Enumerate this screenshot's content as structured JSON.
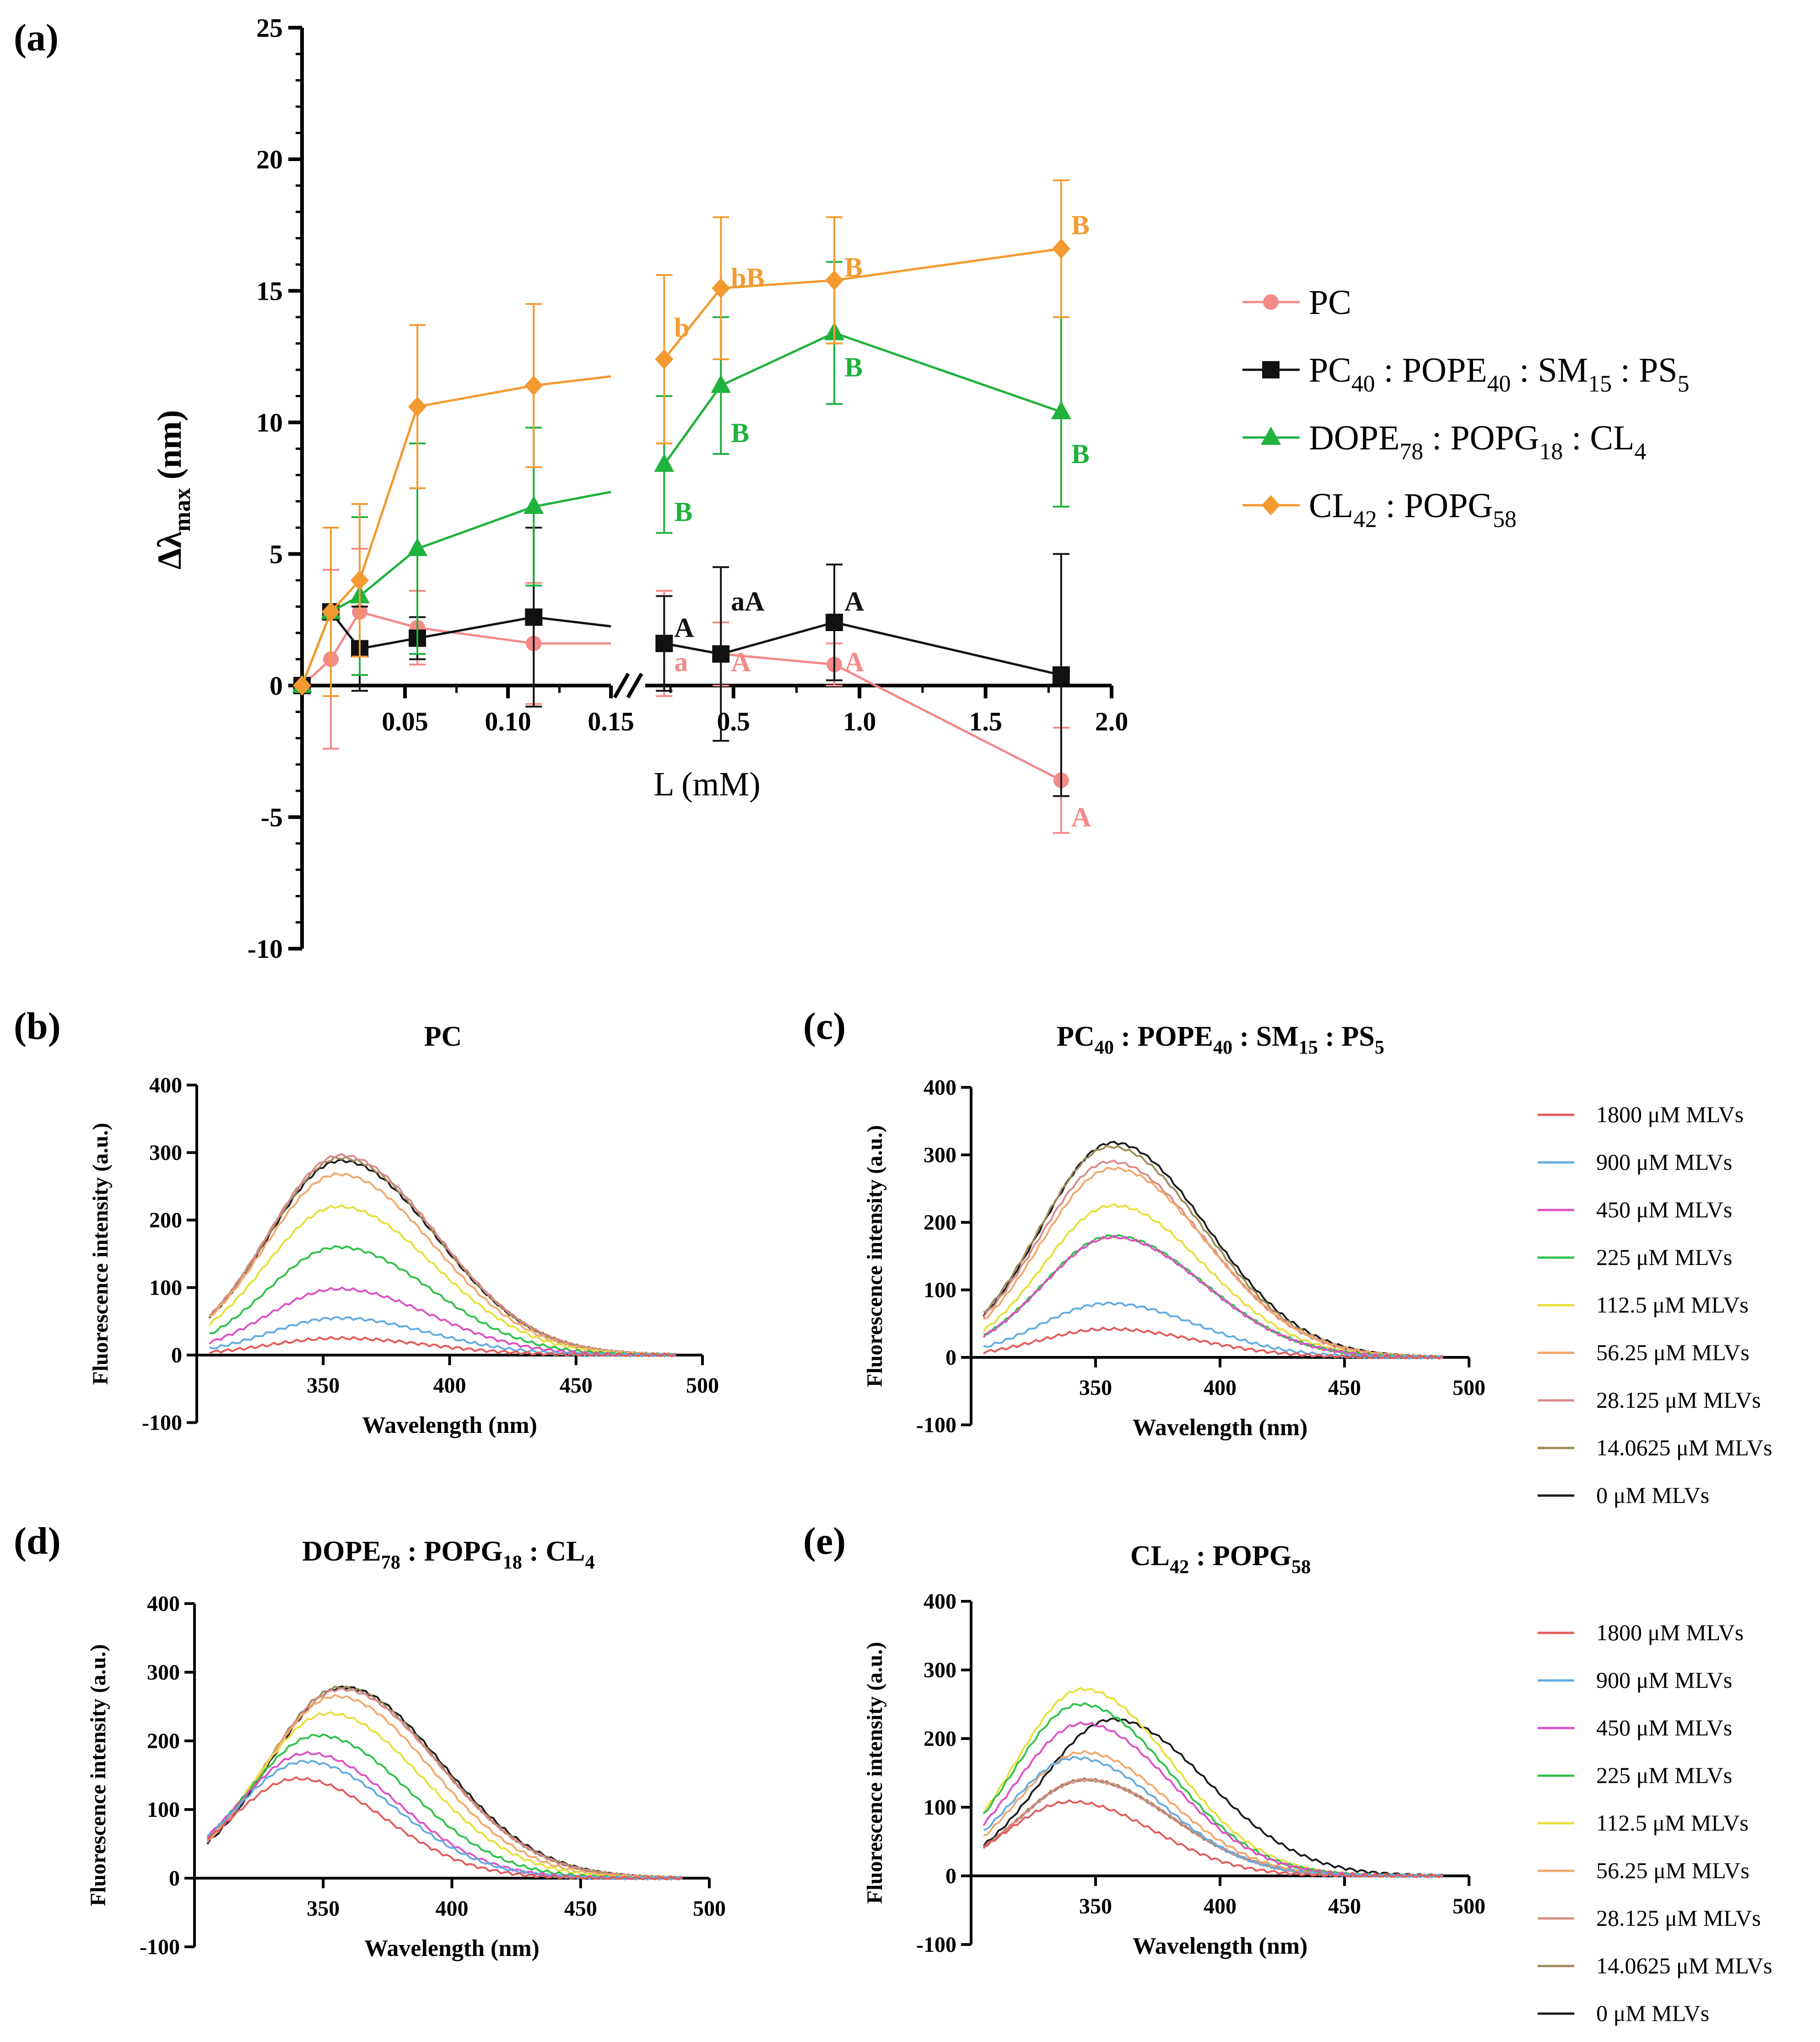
{
  "chart_data": [
    {
      "panel": "(a)",
      "type": "line",
      "title": "",
      "xlabel": "L (mM)",
      "ylabel": "Δλmax (nm)",
      "ylabel_main": "Δλ",
      "ylabel_sub": "max",
      "ylabel_unit": " (nm)",
      "ylim": [
        -10,
        25
      ],
      "yticks": [
        -10,
        -5,
        0,
        5,
        10,
        15,
        20,
        25
      ],
      "x_segment1_range": [
        0,
        0.15
      ],
      "x_segment1_ticks": [
        "0.05",
        "0.10",
        "0.15"
      ],
      "x_segment1_tick_values": [
        0.05,
        0.1,
        0.15
      ],
      "x_segment2_range": [
        0.15,
        2.0
      ],
      "x_segment2_ticks": [
        "0.5",
        "1.0",
        "1.5",
        "2.0"
      ],
      "x_segment2_tick_values": [
        0.5,
        1.0,
        1.5,
        2.0
      ],
      "axis_break": true,
      "legend_position": "right",
      "series": [
        {
          "name": "PC",
          "legend": [
            {
              "t": "PC"
            }
          ],
          "color": "#f48a8a",
          "marker": "circle",
          "x": [
            0,
            0.014,
            0.028,
            0.056,
            0.1125,
            0.225,
            0.45,
            0.9,
            1.8
          ],
          "y": [
            0,
            1.0,
            2.8,
            2.2,
            1.6,
            1.6,
            1.2,
            0.8,
            -3.6
          ],
          "err": [
            0,
            3.4,
            2.4,
            1.4,
            2.3,
            2.0,
            1.2,
            0.8,
            2.0
          ],
          "annotations": [
            {
              "x": 0.225,
              "y": 0.9,
              "text": "a"
            },
            {
              "x": 0.45,
              "y": 0.9,
              "text": "A"
            },
            {
              "x": 0.9,
              "y": 0.9,
              "text": "A"
            },
            {
              "x": 1.8,
              "y": -5.0,
              "text": "A"
            }
          ]
        },
        {
          "name": "PC40 : POPE40 : SM15 : PS5",
          "legend": [
            {
              "t": "PC"
            },
            {
              "s": "40"
            },
            {
              "t": " : POPE"
            },
            {
              "s": "40"
            },
            {
              "t": " : SM"
            },
            {
              "s": "15"
            },
            {
              "t": " : PS"
            },
            {
              "s": "5"
            }
          ],
          "color": "#111111",
          "marker": "square",
          "x": [
            0,
            0.014,
            0.028,
            0.056,
            0.1125,
            0.225,
            0.45,
            0.9,
            1.8
          ],
          "y": [
            0,
            2.8,
            1.4,
            1.8,
            2.6,
            1.6,
            1.2,
            2.4,
            0.4
          ],
          "err": [
            0,
            3.2,
            1.6,
            0.8,
            3.4,
            1.8,
            3.3,
            2.2,
            4.6
          ],
          "annotations": [
            {
              "x": 0.225,
              "y": 2.2,
              "text": "A"
            },
            {
              "x": 0.45,
              "y": 3.2,
              "text": "aA"
            },
            {
              "x": 0.9,
              "y": 3.2,
              "text": "A"
            }
          ]
        },
        {
          "name": "DOPE78 : POPG18 : CL4",
          "legend": [
            {
              "t": "DOPE"
            },
            {
              "s": "78"
            },
            {
              "t": " : POPG"
            },
            {
              "s": "18"
            },
            {
              "t": " : CL"
            },
            {
              "s": "4"
            }
          ],
          "color": "#1fb23c",
          "marker": "triangle",
          "x": [
            0,
            0.014,
            0.028,
            0.056,
            0.1125,
            0.225,
            0.45,
            0.9,
            1.8
          ],
          "y": [
            0,
            2.8,
            3.4,
            5.2,
            6.8,
            8.4,
            11.4,
            13.4,
            10.4
          ],
          "err": [
            0,
            3.2,
            3.0,
            4.0,
            3.0,
            2.6,
            2.6,
            2.7,
            3.6
          ],
          "annotations": [
            {
              "x": 0.225,
              "y": 6.6,
              "text": "B"
            },
            {
              "x": 0.45,
              "y": 9.6,
              "text": "B"
            },
            {
              "x": 0.9,
              "y": 12.1,
              "text": "B"
            },
            {
              "x": 1.8,
              "y": 8.8,
              "text": "B"
            }
          ]
        },
        {
          "name": "CL42 : POPG58",
          "legend": [
            {
              "t": "CL"
            },
            {
              "s": "42"
            },
            {
              "t": " : POPG"
            },
            {
              "s": "58"
            }
          ],
          "color": "#f39a30",
          "marker": "diamond",
          "x": [
            0,
            0.014,
            0.028,
            0.056,
            0.1125,
            0.225,
            0.45,
            0.9,
            1.8
          ],
          "y": [
            0,
            2.8,
            4.0,
            10.6,
            11.4,
            12.4,
            15.1,
            15.4,
            16.6
          ],
          "err": [
            0,
            3.2,
            2.9,
            3.1,
            3.1,
            3.2,
            2.7,
            2.4,
            2.6
          ],
          "annotations": [
            {
              "x": 0.225,
              "y": 13.6,
              "text": "b"
            },
            {
              "x": 0.45,
              "y": 15.5,
              "text": "bB"
            },
            {
              "x": 0.9,
              "y": 15.9,
              "text": "B"
            },
            {
              "x": 1.8,
              "y": 17.5,
              "text": "B"
            }
          ]
        }
      ]
    },
    {
      "panel": "(b)",
      "type": "line",
      "title": [
        {
          "t": "PC"
        }
      ],
      "xlabel": "Wavelength (nm)",
      "ylabel": "Fluorescence intensity (a.u.)",
      "xlim": [
        300,
        500
      ],
      "ylim": [
        -100,
        400
      ],
      "xticks": [
        350,
        400,
        450,
        500
      ],
      "yticks": [
        -100,
        0,
        100,
        200,
        300,
        400
      ],
      "series_ref": "spectra_legend",
      "peak_nm": [
        356,
        356,
        356,
        356,
        356,
        356,
        357,
        357,
        357
      ],
      "peak_intensity": [
        25,
        55,
        98,
        160,
        220,
        268,
        296,
        292,
        288
      ],
      "width_nm": [
        34,
        34,
        35,
        35,
        36,
        36,
        36,
        36,
        36
      ]
    },
    {
      "panel": "(c)",
      "type": "line",
      "title": [
        {
          "t": "PC"
        },
        {
          "s": "40"
        },
        {
          "t": " : POPE"
        },
        {
          "s": "40"
        },
        {
          "t": " : SM"
        },
        {
          "s": "15"
        },
        {
          "t": " : PS"
        },
        {
          "s": "5"
        }
      ],
      "xlabel": "Wavelength (nm)",
      "ylabel": "Fluorescence intensity (a.u.)",
      "xlim": [
        300,
        500
      ],
      "ylim": [
        -100,
        400
      ],
      "xticks": [
        350,
        400,
        450,
        500
      ],
      "yticks": [
        -100,
        0,
        100,
        200,
        300,
        400
      ],
      "peak_nm": [
        355,
        355,
        357,
        357,
        357,
        357,
        356,
        356,
        357
      ],
      "peak_intensity": [
        42,
        80,
        178,
        180,
        225,
        280,
        290,
        312,
        318
      ],
      "width_nm": [
        34,
        34,
        35,
        35,
        35,
        36,
        36,
        36,
        36
      ]
    },
    {
      "panel": "(d)",
      "type": "line",
      "title": [
        {
          "t": "DOPE"
        },
        {
          "s": "78"
        },
        {
          "t": " : POPG"
        },
        {
          "s": "18"
        },
        {
          "t": " : CL"
        },
        {
          "s": "4"
        }
      ],
      "xlabel": "Wavelength (nm)",
      "ylabel": "Fluorescence intensity (a.u.)",
      "xlim": [
        300,
        500
      ],
      "ylim": [
        -100,
        400
      ],
      "xticks": [
        350,
        400,
        450,
        500
      ],
      "yticks": [
        -100,
        0,
        100,
        200,
        300,
        400
      ],
      "peak_nm": [
        340,
        343,
        344,
        348,
        352,
        355,
        357,
        357,
        358
      ],
      "peak_intensity": [
        145,
        170,
        182,
        208,
        240,
        265,
        275,
        278,
        278
      ],
      "width_nm": [
        32,
        33,
        33,
        34,
        35,
        35,
        36,
        36,
        36
      ]
    },
    {
      "panel": "(e)",
      "type": "line",
      "title": [
        {
          "t": "CL"
        },
        {
          "s": "42"
        },
        {
          "t": " : POPG"
        },
        {
          "s": "58"
        }
      ],
      "xlabel": "Wavelength (nm)",
      "ylabel": "Fluorescence intensity (a.u.)",
      "xlim": [
        300,
        500
      ],
      "ylim": [
        -100,
        400
      ],
      "xticks": [
        350,
        400,
        450,
        500
      ],
      "yticks": [
        -100,
        0,
        100,
        200,
        300,
        400
      ],
      "peak_nm": [
        340,
        342,
        345,
        344,
        345,
        345,
        346,
        346,
        357
      ],
      "peak_intensity": [
        108,
        172,
        222,
        250,
        272,
        180,
        140,
        140,
        228
      ],
      "width_nm": [
        32,
        33,
        34,
        34,
        34,
        33,
        33,
        33,
        36
      ]
    }
  ],
  "spectra_legend": [
    {
      "label": "1800 μM MLVs",
      "color": "#e35a5a"
    },
    {
      "label": "900 μM MLVs",
      "color": "#63ace0"
    },
    {
      "label": "450 μM MLVs",
      "color": "#de4fc4"
    },
    {
      "label": "225 μM MLVs",
      "color": "#2fc24a"
    },
    {
      "label": "112.5 μM MLVs",
      "color": "#e6e03a"
    },
    {
      "label": "56.25 μM MLVs",
      "color": "#f2a86a"
    },
    {
      "label": "28.125 μM MLVs",
      "color": "#d98a8a"
    },
    {
      "label": "14.0625 μM MLVs",
      "color": "#9c8a5a"
    },
    {
      "label": "0 μM MLVs",
      "color": "#1a1a1a"
    }
  ]
}
